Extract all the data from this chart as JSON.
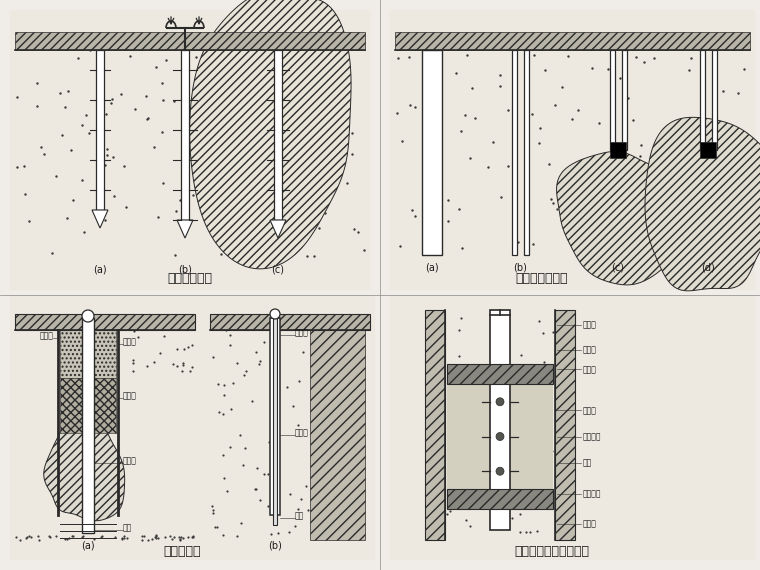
{
  "background_color": "#f0ede8",
  "line_color": "#2a2a2a",
  "text_color": "#1a1a1a",
  "panel_titles": {
    "top_left": "打花管注浆法",
    "top_right": "套管护壁注浆法",
    "bottom_left": "边钻边灌法",
    "bottom_right": "袖阀管法的设备和构造"
  },
  "sub_labels_tl": [
    "(a)",
    "(b)",
    "(c)"
  ],
  "sub_labels_tr": [
    "(a)",
    "(b)",
    "(c)",
    "(d)"
  ],
  "sub_labels_bl": [
    "(a)",
    "(b)"
  ],
  "annotations_bl_a": [
    "护壁管",
    "混凝土",
    "粘土层",
    "灌浆体",
    "灌浆"
  ],
  "annotations_bl_b": [
    "封孔塞",
    "灌浆体",
    "注塞"
  ],
  "annotations_br": [
    "止浆塞",
    "钻孔壁",
    "充填料",
    "出浆孔",
    "橡皮套阀",
    "钢管",
    "灌浆花管",
    "止浆塞"
  ]
}
